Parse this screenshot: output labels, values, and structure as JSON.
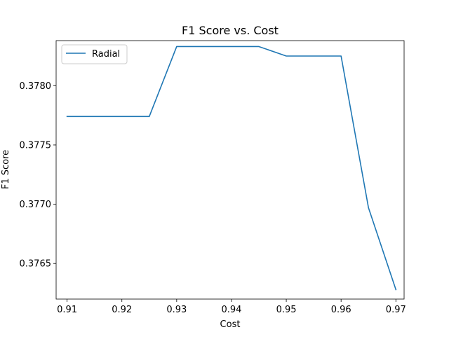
{
  "chart_data": {
    "type": "line",
    "title": "F1 Score vs. Cost",
    "xlabel": "Cost",
    "ylabel": "F1 Score",
    "xlim": [
      0.908,
      0.9715
    ],
    "ylim": [
      0.3762,
      0.37838
    ],
    "xticks": [
      0.91,
      0.92,
      0.93,
      0.94,
      0.95,
      0.96,
      0.97
    ],
    "xtick_labels": [
      "0.91",
      "0.92",
      "0.93",
      "0.94",
      "0.95",
      "0.96",
      "0.97"
    ],
    "yticks": [
      0.3765,
      0.377,
      0.3775,
      0.378
    ],
    "ytick_labels": [
      "0.3765",
      "0.3770",
      "0.3775",
      "0.3780"
    ],
    "grid": false,
    "legend_position": "upper-left",
    "series": [
      {
        "name": "Radial",
        "color": "#1f77b4",
        "x": [
          0.91,
          0.915,
          0.92,
          0.925,
          0.93,
          0.935,
          0.94,
          0.945,
          0.95,
          0.955,
          0.96,
          0.965,
          0.97
        ],
        "y": [
          0.37774,
          0.37774,
          0.37774,
          0.37774,
          0.37833,
          0.37833,
          0.37833,
          0.37833,
          0.37825,
          0.37825,
          0.37825,
          0.37697,
          0.37628
        ]
      }
    ]
  }
}
